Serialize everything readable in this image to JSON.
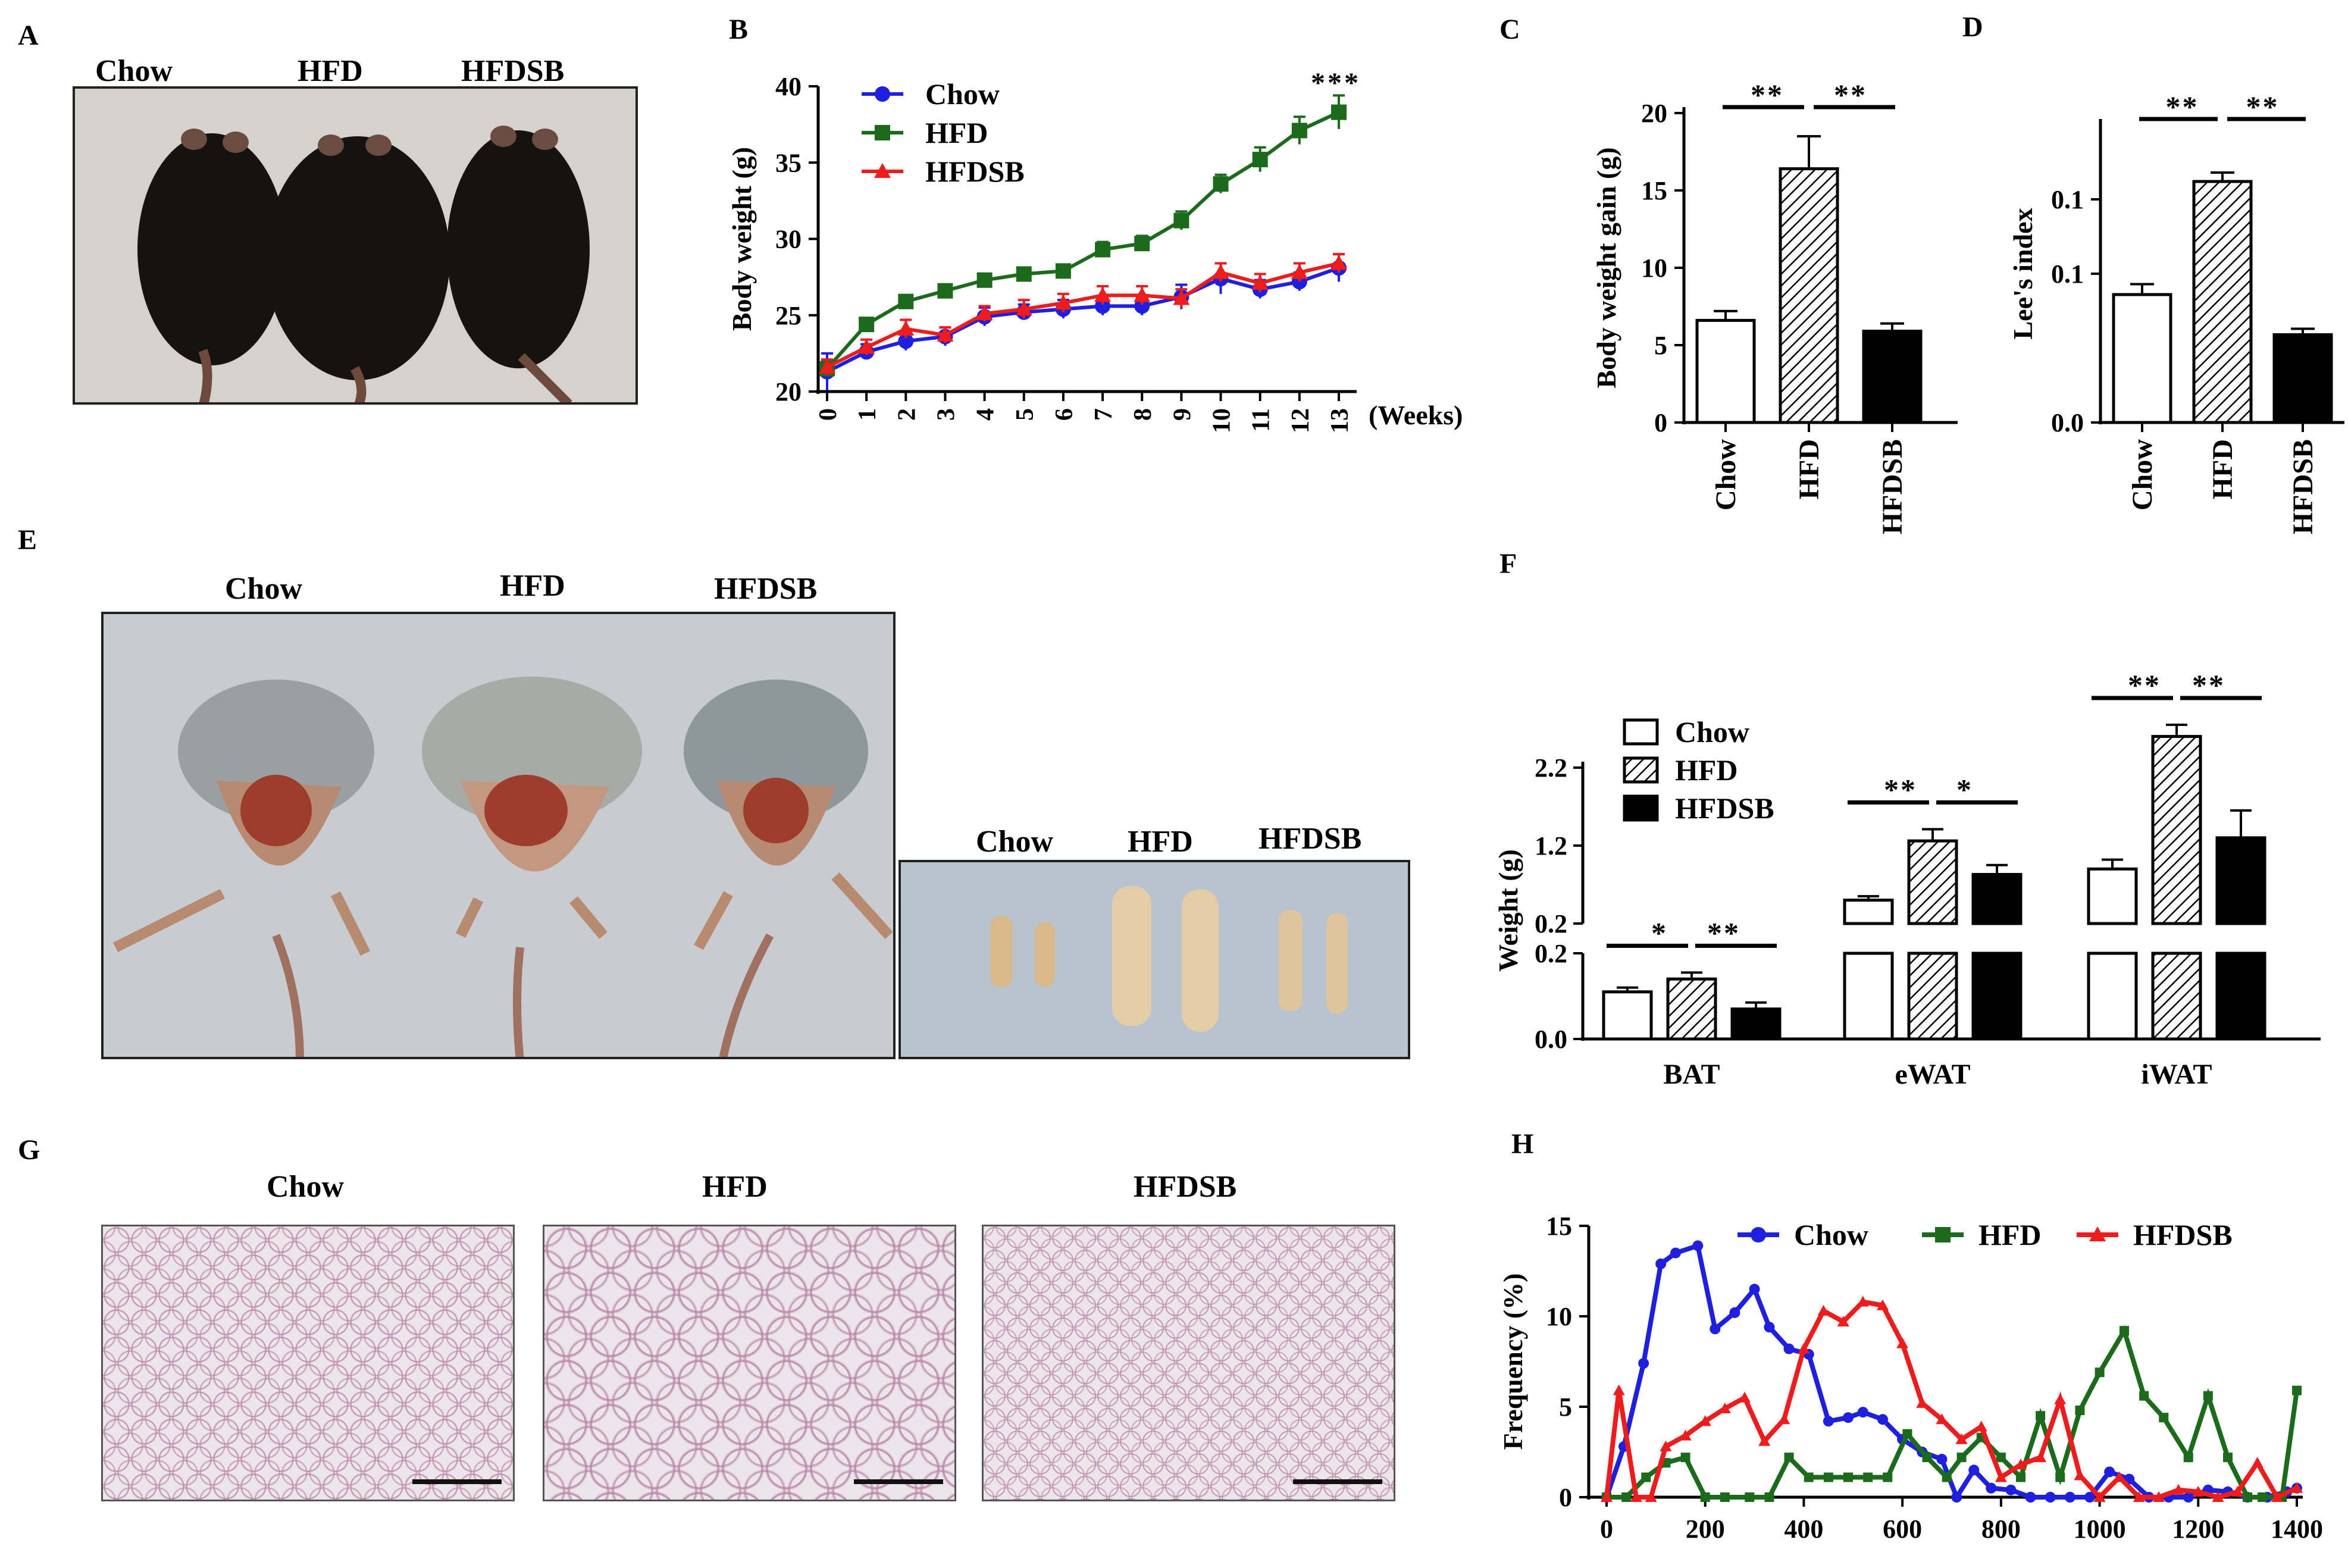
{
  "panel_letters": {
    "a": "A",
    "b": "B",
    "c": "C",
    "d": "D",
    "e": "E",
    "f": "F",
    "g": "G",
    "h": "H"
  },
  "groups": {
    "chow": "Chow",
    "hfd": "HFD",
    "hfdsb": "HFDSB"
  },
  "colors": {
    "chow": "#1f1fe0",
    "hfd": "#1c6b1c",
    "hfdsb": "#ee1c1c"
  },
  "chart_data": [
    {
      "id": "B",
      "type": "line",
      "title": "",
      "xlabel": "(Weeks)",
      "ylabel": "Body weight (g)",
      "x": [
        0,
        1,
        2,
        3,
        4,
        5,
        6,
        7,
        8,
        9,
        10,
        11,
        12,
        13
      ],
      "xticks": [
        "0",
        "1",
        "2",
        "3",
        "4",
        "5",
        "6",
        "7",
        "8",
        "9",
        "10",
        "11",
        "12",
        "13"
      ],
      "ylim": [
        20,
        40
      ],
      "yticks": [
        "20",
        "25",
        "30",
        "35",
        "40"
      ],
      "series": [
        {
          "name": "Chow",
          "values": [
            21.3,
            22.6,
            23.3,
            23.6,
            24.9,
            25.2,
            25.4,
            25.6,
            25.6,
            26.2,
            27.4,
            26.7,
            27.2,
            28.1
          ],
          "err": [
            1.2,
            0.5,
            0.6,
            0.6,
            0.6,
            0.5,
            0.6,
            0.6,
            0.6,
            0.8,
            1.0,
            0.6,
            0.6,
            0.9
          ]
        },
        {
          "name": "HFD",
          "values": [
            21.5,
            24.4,
            25.9,
            26.6,
            27.3,
            27.7,
            27.9,
            29.3,
            29.7,
            31.2,
            33.6,
            35.2,
            37.1,
            38.3
          ],
          "err": [
            0.5,
            0.4,
            0.4,
            0.4,
            0.4,
            0.4,
            0.4,
            0.5,
            0.5,
            0.6,
            0.6,
            0.8,
            0.9,
            1.1
          ]
        },
        {
          "name": "HFDSB",
          "values": [
            21.6,
            22.9,
            24.1,
            23.7,
            25.1,
            25.4,
            25.8,
            26.3,
            26.3,
            26.1,
            27.8,
            27.1,
            27.8,
            28.4
          ],
          "err": [
            0.5,
            0.5,
            0.6,
            0.5,
            0.5,
            0.6,
            0.6,
            0.6,
            0.6,
            0.6,
            0.6,
            0.6,
            0.6,
            0.6
          ]
        }
      ],
      "annotations": [
        "***"
      ],
      "legend": "top-left"
    },
    {
      "id": "C",
      "type": "bar",
      "categories": [
        "Chow",
        "HFD",
        "HFDSB"
      ],
      "values": [
        6.6,
        16.4,
        5.9
      ],
      "err": [
        0.6,
        2.1,
        0.5
      ],
      "ylabel": "Body weight gain (g)",
      "ylim": [
        0,
        20
      ],
      "yticks": [
        "0",
        "5",
        "10",
        "15",
        "20"
      ],
      "annotations": [
        "**",
        "**"
      ]
    },
    {
      "id": "D",
      "type": "bar",
      "categories": [
        "Chow",
        "HFD",
        "HFDSB"
      ],
      "values": [
        0.086,
        0.162,
        0.059
      ],
      "err": [
        0.007,
        0.006,
        0.004
      ],
      "ylabel": "Lee's index",
      "ylim": [
        0,
        0.2
      ],
      "yticks": [
        "0.0",
        "0.1",
        "0.1"
      ],
      "annotations": [
        "**",
        "**"
      ]
    },
    {
      "id": "F",
      "type": "bar",
      "categories": [
        "BAT",
        "eWAT",
        "iWAT"
      ],
      "series": [
        {
          "name": "Chow",
          "values": [
            0.11,
            0.5,
            0.9
          ],
          "err": [
            0.01,
            0.05,
            0.12
          ]
        },
        {
          "name": "HFD",
          "values": [
            0.14,
            1.26,
            2.6
          ],
          "err": [
            0.015,
            0.15,
            0.15
          ]
        },
        {
          "name": "HFDSB",
          "values": [
            0.07,
            0.83,
            1.3
          ],
          "err": [
            0.015,
            0.12,
            0.35
          ]
        }
      ],
      "ylabel": "Weight (g)",
      "yticks_lower": [
        "0.0",
        "0.2"
      ],
      "yticks_upper": [
        "0.2",
        "1.2",
        "2.2"
      ],
      "annotations": [
        "*",
        "**",
        "**",
        "*",
        "**",
        "**"
      ],
      "legend": "top-left"
    },
    {
      "id": "H",
      "type": "line",
      "xlabel": "",
      "ylabel": "Frequency (%)",
      "xlim": [
        0,
        1400
      ],
      "ylim": [
        0,
        15
      ],
      "xticks": [
        "0",
        "200",
        "400",
        "600",
        "800",
        "1000",
        "1200",
        "1400"
      ],
      "yticks": [
        "0",
        "5",
        "10",
        "15"
      ],
      "series": [
        {
          "name": "Chow",
          "x": [
            0,
            35,
            75,
            110,
            140,
            185,
            220,
            260,
            300,
            330,
            370,
            410,
            450,
            490,
            520,
            560,
            600,
            640,
            680,
            710,
            745,
            780,
            820,
            860,
            900,
            940,
            980,
            1020,
            1060,
            1100,
            1140,
            1180,
            1220,
            1260,
            1300,
            1340,
            1380,
            1400
          ],
          "values": [
            0,
            2.8,
            7.4,
            12.9,
            13.5,
            13.9,
            9.3,
            10.2,
            11.5,
            9.4,
            8.2,
            7.9,
            4.2,
            4.4,
            4.7,
            4.3,
            3.2,
            2.5,
            2.1,
            0,
            1.5,
            0.5,
            0.4,
            0,
            0,
            0,
            0,
            1.4,
            1.0,
            0,
            0,
            0,
            0.4,
            0.3,
            0,
            0,
            0.3,
            0.5
          ]
        },
        {
          "name": "HFD",
          "x": [
            0,
            40,
            80,
            120,
            160,
            200,
            240,
            290,
            330,
            370,
            410,
            450,
            490,
            530,
            570,
            610,
            650,
            690,
            720,
            760,
            800,
            840,
            880,
            920,
            960,
            1000,
            1050,
            1090,
            1130,
            1180,
            1220,
            1260,
            1300,
            1330,
            1370,
            1400
          ],
          "values": [
            0,
            0,
            1.1,
            1.9,
            2.2,
            0,
            0,
            0,
            0,
            2.2,
            1.1,
            1.1,
            1.1,
            1.1,
            1.1,
            3.5,
            2.2,
            1.1,
            2.2,
            3.3,
            2.2,
            1.1,
            4.5,
            1.1,
            4.8,
            6.9,
            9.2,
            5.6,
            4.4,
            2.2,
            5.6,
            2.2,
            0,
            0,
            0,
            5.9
          ]
        },
        {
          "name": "HFDSB",
          "x": [
            0,
            25,
            60,
            90,
            120,
            160,
            200,
            240,
            280,
            320,
            360,
            400,
            440,
            480,
            520,
            560,
            600,
            640,
            680,
            720,
            760,
            800,
            840,
            880,
            920,
            960,
            1000,
            1040,
            1080,
            1120,
            1160,
            1200,
            1240,
            1280,
            1320,
            1360,
            1400
          ],
          "values": [
            0,
            5.9,
            0,
            0,
            2.8,
            3.4,
            4.2,
            4.9,
            5.5,
            3.1,
            4.3,
            8.2,
            10.3,
            9.7,
            10.8,
            10.6,
            8.5,
            5.2,
            4.3,
            3.2,
            3.9,
            1.1,
            1.8,
            2.2,
            5.4,
            1.2,
            0,
            1.1,
            0,
            0,
            0.4,
            0.3,
            0,
            0.3,
            1.9,
            0,
            0.5
          ]
        }
      ],
      "legend": "top"
    }
  ]
}
